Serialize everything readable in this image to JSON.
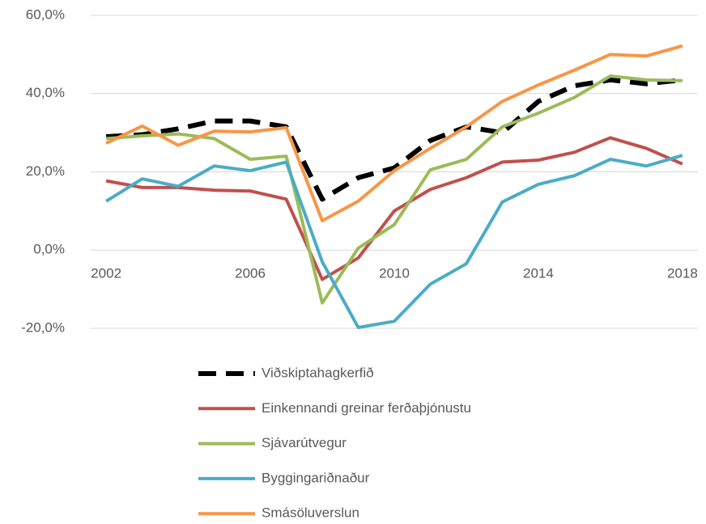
{
  "chart_data": {
    "type": "line",
    "x": [
      2002,
      2003,
      2004,
      2005,
      2006,
      2007,
      2008,
      2009,
      2010,
      2011,
      2012,
      2013,
      2014,
      2015,
      2016,
      2017,
      2018
    ],
    "xlim": [
      2001.57,
      2018.43
    ],
    "xticks": [
      2002,
      2006,
      2010,
      2014,
      2018
    ],
    "ylim": [
      -20,
      60
    ],
    "yticks": [
      {
        "value": -20,
        "label": "-20,0%"
      },
      {
        "value": 0,
        "label": "0,0%"
      },
      {
        "value": 20,
        "label": "20,0%"
      },
      {
        "value": 40,
        "label": "40,0%"
      },
      {
        "value": 60,
        "label": "60,0%"
      }
    ],
    "grid": true,
    "legend": "bottom",
    "series": [
      {
        "name": "Viðskiptahagkerfið",
        "color": "#000000",
        "dashed": true,
        "values": [
          29,
          29.5,
          31,
          33,
          33,
          31.5,
          13,
          18.5,
          21,
          28,
          31.5,
          30,
          38,
          42,
          43.5,
          42.5,
          43.5
        ]
      },
      {
        "name": "Einkennandi greinar ferðaþjónustu",
        "color": "#c0504d",
        "values": [
          17.7,
          16,
          16,
          15.3,
          15.1,
          13,
          -7.5,
          -2,
          10,
          15.5,
          18.5,
          22.5,
          23,
          25,
          28.7,
          26,
          22
        ]
      },
      {
        "name": "Sjávarútvegur",
        "color": "#9bbb59",
        "values": [
          28.5,
          29.2,
          29.7,
          28.5,
          23.2,
          24,
          -13.5,
          0.5,
          6.5,
          20.5,
          23.2,
          31.5,
          35,
          39,
          44.5,
          43.5,
          43.3
        ]
      },
      {
        "name": "Byggingariðnaður",
        "color": "#4bacc6",
        "values": [
          12.5,
          18.2,
          16.3,
          21.5,
          20.3,
          22.5,
          -3,
          -19.8,
          -18.2,
          -8.7,
          -3.5,
          12.3,
          16.8,
          19,
          23.2,
          21.5,
          24.2
        ]
      },
      {
        "name": "Smásöluverslun",
        "color": "#f79646",
        "values": [
          27.3,
          31.7,
          26.8,
          30.4,
          30.2,
          31.3,
          7.5,
          12.5,
          20.3,
          26,
          31.5,
          38,
          42.2,
          46,
          50,
          49.6,
          52.2
        ]
      }
    ]
  }
}
